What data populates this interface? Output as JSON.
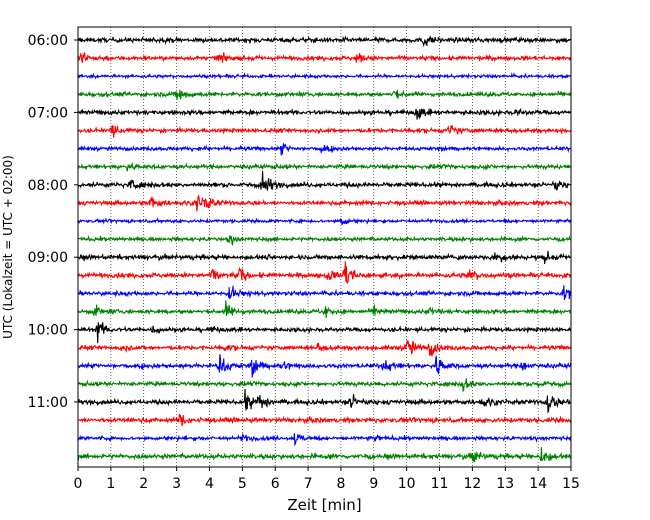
{
  "chart_data": {
    "type": "line",
    "title": "",
    "xlabel": "Zeit  [min]",
    "ylabel": "UTC (Lokalzeit = UTC + 02:00)",
    "xlim": [
      0,
      15
    ],
    "x_ticks": [
      0,
      1,
      2,
      3,
      4,
      5,
      6,
      7,
      8,
      9,
      10,
      11,
      12,
      13,
      14,
      15
    ],
    "row_interval_min": 15,
    "rows_start": "06:00",
    "y_ticks": [
      {
        "label": "06:00",
        "row": 0
      },
      {
        "label": "07:00",
        "row": 4
      },
      {
        "label": "08:00",
        "row": 8
      },
      {
        "label": "09:00",
        "row": 12
      },
      {
        "label": "10:00",
        "row": 16
      },
      {
        "label": "11:00",
        "row": 20
      }
    ],
    "grid": "vertical-dotted",
    "colors": [
      "#000000",
      "#ff0000",
      "#0000ff",
      "#008000"
    ],
    "traces": [
      {
        "row": 0,
        "color": "#000000",
        "base_amp": 0.22,
        "events": [
          [
            10.5,
            0.7
          ]
        ]
      },
      {
        "row": 1,
        "color": "#ff0000",
        "base_amp": 0.2,
        "events": [
          [
            0.1,
            0.9
          ],
          [
            4.3,
            0.5
          ],
          [
            8.5,
            0.6
          ]
        ]
      },
      {
        "row": 2,
        "color": "#0000ff",
        "base_amp": 0.15,
        "events": []
      },
      {
        "row": 3,
        "color": "#008000",
        "base_amp": 0.2,
        "events": [
          [
            3.0,
            0.9
          ],
          [
            9.6,
            0.4
          ]
        ]
      },
      {
        "row": 4,
        "color": "#000000",
        "base_amp": 0.22,
        "events": [
          [
            10.3,
            0.8
          ],
          [
            13.3,
            0.3
          ]
        ]
      },
      {
        "row": 5,
        "color": "#ff0000",
        "base_amp": 0.2,
        "events": [
          [
            1.0,
            0.9
          ],
          [
            11.3,
            0.6
          ]
        ]
      },
      {
        "row": 6,
        "color": "#0000ff",
        "base_amp": 0.18,
        "events": [
          [
            6.2,
            0.6
          ],
          [
            7.4,
            0.5
          ]
        ]
      },
      {
        "row": 7,
        "color": "#008000",
        "base_amp": 0.2,
        "events": [
          [
            1.5,
            0.4
          ]
        ]
      },
      {
        "row": 8,
        "color": "#000000",
        "base_amp": 0.22,
        "events": [
          [
            1.6,
            0.6
          ],
          [
            5.6,
            1.6
          ],
          [
            14.5,
            0.6
          ]
        ]
      },
      {
        "row": 9,
        "color": "#ff0000",
        "base_amp": 0.2,
        "events": [
          [
            2.2,
            0.7
          ],
          [
            3.6,
            0.9
          ],
          [
            3.9,
            0.7
          ]
        ]
      },
      {
        "row": 10,
        "color": "#0000ff",
        "base_amp": 0.15,
        "events": [
          [
            8.0,
            0.5
          ]
        ]
      },
      {
        "row": 11,
        "color": "#008000",
        "base_amp": 0.18,
        "events": [
          [
            4.6,
            0.5
          ]
        ]
      },
      {
        "row": 12,
        "color": "#000000",
        "base_amp": 0.22,
        "events": [
          [
            12.7,
            0.6
          ],
          [
            14.2,
            0.4
          ]
        ]
      },
      {
        "row": 13,
        "color": "#ff0000",
        "base_amp": 0.22,
        "events": [
          [
            4.1,
            0.6
          ],
          [
            4.9,
            0.8
          ],
          [
            7.6,
            0.6
          ],
          [
            8.1,
            1.8
          ],
          [
            11.9,
            0.8
          ]
        ]
      },
      {
        "row": 14,
        "color": "#0000ff",
        "base_amp": 0.2,
        "events": [
          [
            4.6,
            0.9
          ],
          [
            14.8,
            0.8
          ]
        ]
      },
      {
        "row": 15,
        "color": "#008000",
        "base_amp": 0.2,
        "events": [
          [
            0.5,
            0.6
          ],
          [
            4.5,
            0.8
          ],
          [
            7.5,
            0.7
          ],
          [
            9.0,
            0.4
          ],
          [
            10.7,
            0.4
          ]
        ]
      },
      {
        "row": 16,
        "color": "#000000",
        "base_amp": 0.2,
        "events": [
          [
            0.6,
            1.1
          ],
          [
            2.3,
            0.4
          ],
          [
            4.0,
            0.3
          ]
        ]
      },
      {
        "row": 17,
        "color": "#ff0000",
        "base_amp": 0.2,
        "events": [
          [
            1.3,
            0.3
          ],
          [
            4.5,
            0.3
          ],
          [
            7.3,
            0.4
          ],
          [
            10.0,
            1.3
          ],
          [
            10.7,
            0.9
          ]
        ]
      },
      {
        "row": 18,
        "color": "#0000ff",
        "base_amp": 0.22,
        "events": [
          [
            4.3,
            1.2
          ],
          [
            5.3,
            1.0
          ],
          [
            6.2,
            0.5
          ],
          [
            9.3,
            0.6
          ],
          [
            10.9,
            1.2
          ],
          [
            13.5,
            0.4
          ]
        ]
      },
      {
        "row": 19,
        "color": "#008000",
        "base_amp": 0.2,
        "events": [
          [
            11.7,
            0.8
          ],
          [
            14.0,
            0.5
          ]
        ]
      },
      {
        "row": 20,
        "color": "#000000",
        "base_amp": 0.22,
        "events": [
          [
            5.1,
            1.0
          ],
          [
            5.5,
            1.1
          ],
          [
            8.3,
            0.8
          ],
          [
            12.3,
            0.5
          ],
          [
            14.3,
            1.1
          ]
        ]
      },
      {
        "row": 21,
        "color": "#ff0000",
        "base_amp": 0.22,
        "events": [
          [
            3.1,
            0.8
          ]
        ]
      },
      {
        "row": 22,
        "color": "#0000ff",
        "base_amp": 0.18,
        "events": [
          [
            5.0,
            0.4
          ],
          [
            6.6,
            0.7
          ],
          [
            9.0,
            0.3
          ]
        ]
      },
      {
        "row": 23,
        "color": "#008000",
        "base_amp": 0.22,
        "events": [
          [
            12.0,
            0.8
          ],
          [
            14.1,
            1.1
          ]
        ]
      }
    ]
  }
}
